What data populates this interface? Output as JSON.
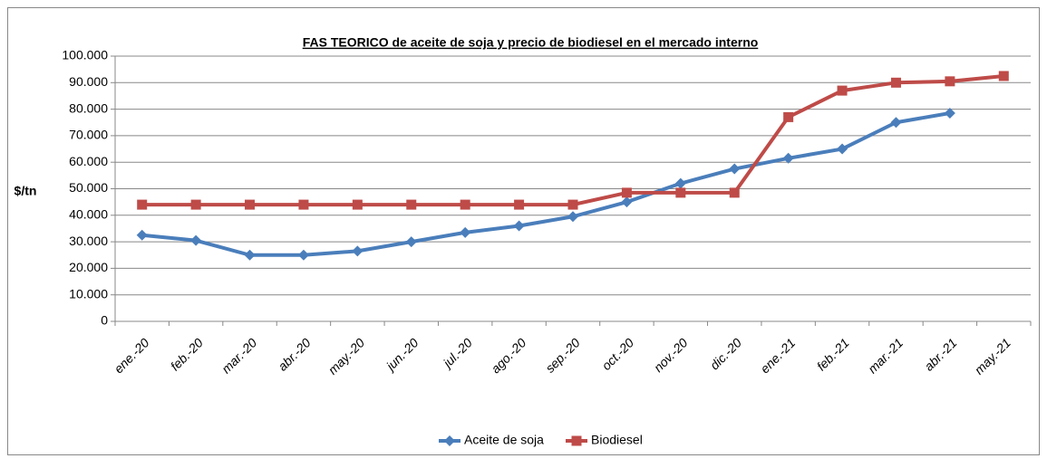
{
  "chart_data": {
    "type": "line",
    "title": "FAS TEORICO de aceite de soja y precio de biodiesel en el mercado interno",
    "y_label": "$/tn",
    "categories": [
      "ene.-20",
      "feb.-20",
      "mar.-20",
      "abr.-20",
      "may.-20",
      "jun.-20",
      "jul.-20",
      "ago.-20",
      "sep.-20",
      "oct.-20",
      "nov.-20",
      "dic.-20",
      "ene.-21",
      "feb.-21",
      "mar.-21",
      "abr.-21",
      "may.-21"
    ],
    "series": [
      {
        "name": "Aceite de soja",
        "color": "#4a7ebb",
        "marker": "diamond",
        "values": [
          32500,
          30500,
          25000,
          25000,
          26500,
          30000,
          33500,
          36000,
          39500,
          45000,
          52000,
          57500,
          61500,
          65000,
          75000,
          78500,
          null
        ]
      },
      {
        "name": "Biodiesel",
        "color": "#be4b48",
        "marker": "square",
        "values": [
          44000,
          44000,
          44000,
          44000,
          44000,
          44000,
          44000,
          44000,
          44000,
          48500,
          48500,
          48500,
          77000,
          87000,
          90000,
          90500,
          92500
        ]
      }
    ],
    "ylim": [
      0,
      100000
    ],
    "yticks": [
      0,
      {
        "value": 10000,
        "label": "10.000"
      },
      {
        "value": 20000,
        "label": "20.000"
      },
      {
        "value": 30000,
        "label": "30.000"
      },
      {
        "value": 40000,
        "label": "40.000"
      },
      {
        "value": 50000,
        "label": "50.000"
      },
      {
        "value": 60000,
        "label": "60.000"
      },
      {
        "value": 70000,
        "label": "70.000"
      },
      {
        "value": 80000,
        "label": "80.000"
      },
      {
        "value": 90000,
        "label": "90.000"
      },
      {
        "value": 100000,
        "label": "100.000"
      }
    ],
    "grid": true,
    "legend": "bottom"
  }
}
